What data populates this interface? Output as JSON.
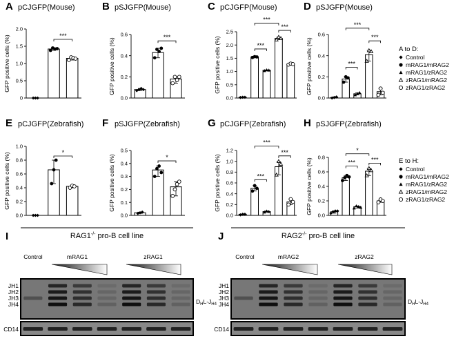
{
  "figure": {
    "labels": [
      "A",
      "B",
      "C",
      "D",
      "E",
      "F",
      "G",
      "H",
      "I",
      "J"
    ],
    "legend_top": {
      "title": "A to D:",
      "items": [
        {
          "symbol": "diamond",
          "label": "Control"
        },
        {
          "symbol": "circle",
          "label": "mRAG1/mRAG2"
        },
        {
          "symbol": "triangle",
          "label": "mRAG1/zRAG2"
        },
        {
          "symbol": "triangle-open",
          "label": "zRAG1/mRAG2"
        },
        {
          "symbol": "circle-open",
          "label": "zRAG1/zRAG2"
        }
      ]
    },
    "legend_bottom": {
      "title": "E to H:",
      "items": [
        {
          "symbol": "diamond",
          "label": "Control"
        },
        {
          "symbol": "circle",
          "label": "mRAG1/mRAG2"
        },
        {
          "symbol": "triangle",
          "label": "mRAG1/zRAG2"
        },
        {
          "symbol": "triangle-open",
          "label": "zRAG1/mRAG2"
        },
        {
          "symbol": "circle-open",
          "label": "zRAG1/zRAG2"
        }
      ]
    },
    "gel_I": {
      "title": "RAG1⁻/⁻ pro-B cell line",
      "lanes": [
        "Control",
        "mRAG1",
        "zRAG1"
      ],
      "bands": [
        "JH1",
        "JH2",
        "JH3",
        "JH4"
      ],
      "product": "DHL-JH4",
      "loading": "CD14"
    },
    "gel_J": {
      "title": "RAG2⁻/⁻ pro-B cell line",
      "lanes": [
        "Control",
        "mRAG2",
        "zRAG2"
      ],
      "bands": [
        "JH1",
        "JH2",
        "JH3",
        "JH4"
      ],
      "product": "DHL-JH4",
      "loading": "CD14"
    }
  },
  "chart_data": [
    {
      "panel": "A",
      "type": "bar",
      "title": "pCJGFP(Mouse)",
      "ylabel": "GFP positive cells (%)",
      "ylim": [
        0,
        2.0
      ],
      "yticks": [
        "0",
        "0.5",
        "1.0",
        "1.5",
        "2.0"
      ],
      "bars": [
        {
          "group": "Control",
          "value": 0.0,
          "points": [
            0.0,
            0.0,
            0.0
          ]
        },
        {
          "group": "mRAG1/mRAG2",
          "value": 1.42,
          "points": [
            1.38,
            1.45,
            1.42,
            1.43
          ]
        },
        {
          "group": "zRAG1/zRAG2",
          "value": 1.15,
          "points": [
            1.1,
            1.18,
            1.16,
            1.14
          ]
        }
      ],
      "significance": [
        {
          "from": 1,
          "to": 2,
          "label": "***",
          "level": 1.7
        }
      ]
    },
    {
      "panel": "B",
      "type": "bar",
      "title": "pSJGFP(Mouse)",
      "ylabel": "GFP positive cells (%)",
      "ylim": [
        0,
        0.6
      ],
      "yticks": [
        "0.0",
        "0.2",
        "0.4",
        "0.6"
      ],
      "bars": [
        {
          "group": "Control",
          "value": 0.08,
          "points": [
            0.07,
            0.08,
            0.09,
            0.08
          ]
        },
        {
          "group": "mRAG1/mRAG2",
          "value": 0.43,
          "points": [
            0.38,
            0.46,
            0.44,
            0.47
          ]
        },
        {
          "group": "zRAG1/zRAG2",
          "value": 0.18,
          "points": [
            0.14,
            0.2,
            0.17,
            0.2
          ]
        }
      ],
      "significance": [
        {
          "from": 1,
          "to": 2,
          "label": "***",
          "level": 0.54
        }
      ]
    },
    {
      "panel": "C",
      "type": "bar",
      "title": "pCJGFP(Mouse)",
      "ylabel": "GFP positive cells (%)",
      "ylim": [
        0,
        2.5
      ],
      "yticks": [
        "0.0",
        "0.5",
        "1.0",
        "1.5",
        "2.0",
        "2.5"
      ],
      "bars": [
        {
          "group": "Control",
          "value": 0.03,
          "points": [
            0.02,
            0.03,
            0.03
          ]
        },
        {
          "group": "mRAG1/mRAG2",
          "value": 1.55,
          "points": [
            1.53,
            1.56,
            1.55
          ]
        },
        {
          "group": "mRAG1/zRAG2",
          "value": 1.05,
          "points": [
            1.03,
            1.06,
            1.05
          ]
        },
        {
          "group": "zRAG1/mRAG2",
          "value": 2.25,
          "points": [
            2.2,
            2.3,
            2.25
          ]
        },
        {
          "group": "zRAG1/zRAG2",
          "value": 1.28,
          "points": [
            1.26,
            1.3,
            1.28
          ]
        }
      ],
      "significance": [
        {
          "from": 1,
          "to": 2,
          "label": "***",
          "level": 1.85
        },
        {
          "from": 3,
          "to": 4,
          "label": "***",
          "level": 2.55
        },
        {
          "from": 1,
          "to": 3,
          "label": "***",
          "level": 2.82
        }
      ]
    },
    {
      "panel": "D",
      "type": "bar",
      "title": "pSJGFP(Mouse)",
      "ylabel": "GFP positive cells (%)",
      "ylim": [
        0,
        0.6
      ],
      "yticks": [
        "0.0",
        "0.2",
        "0.4",
        "0.6"
      ],
      "bars": [
        {
          "group": "Control",
          "value": 0.005,
          "points": [
            0.0,
            0.005,
            0.01
          ]
        },
        {
          "group": "mRAG1/mRAG2",
          "value": 0.18,
          "points": [
            0.15,
            0.2,
            0.19
          ]
        },
        {
          "group": "mRAG1/zRAG2",
          "value": 0.04,
          "points": [
            0.03,
            0.04,
            0.05
          ]
        },
        {
          "group": "zRAG1/mRAG2",
          "value": 0.41,
          "points": [
            0.35,
            0.45,
            0.44
          ]
        },
        {
          "group": "zRAG1/zRAG2",
          "value": 0.06,
          "points": [
            0.03,
            0.09,
            0.05
          ]
        }
      ],
      "significance": [
        {
          "from": 1,
          "to": 2,
          "label": "***",
          "level": 0.29
        },
        {
          "from": 3,
          "to": 4,
          "label": "***",
          "level": 0.54
        },
        {
          "from": 1,
          "to": 3,
          "label": "***",
          "level": 0.66
        }
      ]
    },
    {
      "panel": "E",
      "type": "bar",
      "title": "pCJGFP(Zebrafish)",
      "ylabel": "GFP positive cells (%)",
      "ylim": [
        0,
        1.0
      ],
      "yticks": [
        "0.0",
        "0.2",
        "0.4",
        "0.6",
        "0.8",
        "1.0"
      ],
      "bars": [
        {
          "group": "Control",
          "value": 0.0,
          "points": [
            0.0,
            0.0,
            0.0
          ]
        },
        {
          "group": "mRAG1/mRAG2",
          "value": 0.66,
          "points": [
            0.46,
            0.66,
            0.8
          ]
        },
        {
          "group": "zRAG1/zRAG2",
          "value": 0.42,
          "points": [
            0.4,
            0.43,
            0.42
          ]
        }
      ],
      "significance": [
        {
          "from": 1,
          "to": 2,
          "label": "*",
          "level": 0.86
        }
      ]
    },
    {
      "panel": "F",
      "type": "bar",
      "title": "pSJGFP(Zebrafish)",
      "ylabel": "GFP positive cells (%)",
      "ylim": [
        0,
        0.5
      ],
      "yticks": [
        "0.0",
        "0.1",
        "0.2",
        "0.3",
        "0.4",
        "0.5"
      ],
      "bars": [
        {
          "group": "Control",
          "value": 0.02,
          "points": [
            0.015,
            0.02,
            0.025
          ]
        },
        {
          "group": "mRAG1/mRAG2",
          "value": 0.35,
          "points": [
            0.3,
            0.36,
            0.38,
            0.33
          ]
        },
        {
          "group": "zRAG1/zRAG2",
          "value": 0.22,
          "points": [
            0.15,
            0.2,
            0.24,
            0.26
          ]
        }
      ],
      "significance": [
        {
          "from": 1,
          "to": 2,
          "label": "*",
          "level": 0.42
        }
      ]
    },
    {
      "panel": "G",
      "type": "bar",
      "title": "pCJGFP(Zebrafish)",
      "ylabel": "GFP positive cells (%)",
      "ylim": [
        0,
        1.2
      ],
      "yticks": [
        "0.0",
        "0.2",
        "0.4",
        "0.6",
        "0.8",
        "1.0",
        "1.2"
      ],
      "bars": [
        {
          "group": "Control",
          "value": 0.02,
          "points": [
            0.01,
            0.02,
            0.02
          ]
        },
        {
          "group": "mRAG1/mRAG2",
          "value": 0.5,
          "points": [
            0.45,
            0.55,
            0.5
          ]
        },
        {
          "group": "mRAG1/zRAG2",
          "value": 0.07,
          "points": [
            0.06,
            0.08,
            0.07
          ]
        },
        {
          "group": "zRAG1/mRAG2",
          "value": 0.9,
          "points": [
            0.75,
            1.0,
            0.95
          ]
        },
        {
          "group": "zRAG1/zRAG2",
          "value": 0.25,
          "points": [
            0.2,
            0.3,
            0.25
          ]
        }
      ],
      "significance": [
        {
          "from": 1,
          "to": 2,
          "label": "***",
          "level": 0.66
        },
        {
          "from": 3,
          "to": 4,
          "label": "***",
          "level": 1.1
        },
        {
          "from": 1,
          "to": 3,
          "label": "***",
          "level": 1.28
        }
      ]
    },
    {
      "panel": "H",
      "type": "bar",
      "title": "pSJGFP(Zebrafish)",
      "ylabel": "GFP positive cells (%)",
      "ylim": [
        0,
        0.8
      ],
      "yticks": [
        "0.0",
        "0.2",
        "0.4",
        "0.6",
        "0.8"
      ],
      "bars": [
        {
          "group": "Control",
          "value": 0.05,
          "points": [
            0.03,
            0.05,
            0.06,
            0.06
          ]
        },
        {
          "group": "mRAG1/mRAG2",
          "value": 0.52,
          "points": [
            0.48,
            0.52,
            0.55,
            0.53
          ]
        },
        {
          "group": "mRAG1/zRAG2",
          "value": 0.12,
          "points": [
            0.1,
            0.13,
            0.12,
            0.11
          ]
        },
        {
          "group": "zRAG1/mRAG2",
          "value": 0.61,
          "points": [
            0.55,
            0.65,
            0.62
          ]
        },
        {
          "group": "zRAG1/zRAG2",
          "value": 0.2,
          "points": [
            0.18,
            0.22,
            0.2
          ]
        }
      ],
      "significance": [
        {
          "from": 1,
          "to": 2,
          "label": "***",
          "level": 0.68
        },
        {
          "from": 3,
          "to": 4,
          "label": "***",
          "level": 0.72
        },
        {
          "from": 1,
          "to": 3,
          "label": "*",
          "level": 0.85
        }
      ]
    }
  ]
}
